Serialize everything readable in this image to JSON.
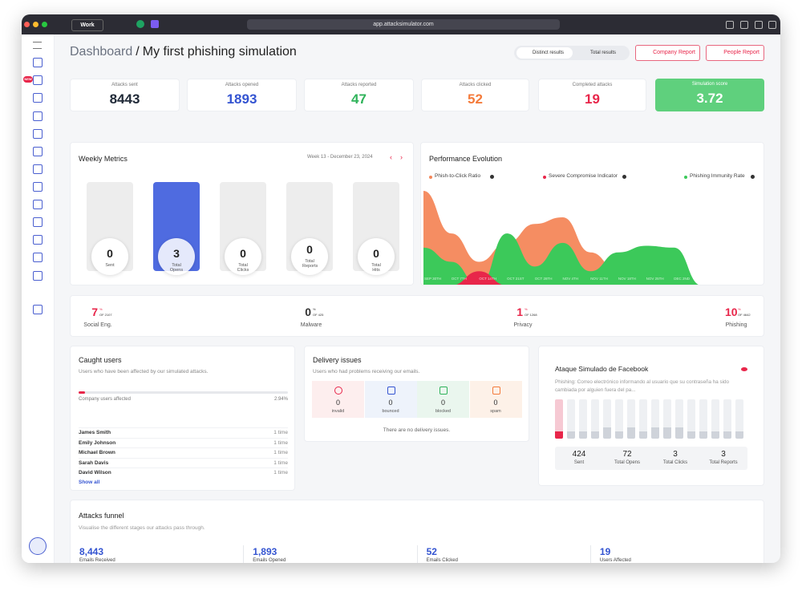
{
  "browser": {
    "profile": "Work",
    "url": "app.attacksimulator.com"
  },
  "sidebar": {
    "badge": "NEW"
  },
  "header": {
    "title": "Dashboard",
    "separator": "/",
    "subtitle": "My first phishing simulation",
    "toggle": [
      "Distinct results",
      "Total results"
    ],
    "buttons": [
      "Company Report",
      "People Report"
    ]
  },
  "stats": [
    {
      "label": "Attacks sent",
      "value": 8443
    },
    {
      "label": "Attacks opened",
      "value": 1893
    },
    {
      "label": "Attacks reported",
      "value": 47
    },
    {
      "label": "Attacks clicked",
      "value": 52
    },
    {
      "label": "Completed attacks",
      "value": 19
    },
    {
      "label": "Simulation score",
      "value": 3.72
    }
  ],
  "weekly_metrics": {
    "title": "Weekly Metrics",
    "date": "Week 13 - December 23, 2024",
    "items": [
      {
        "value": 0,
        "label": "Sent"
      },
      {
        "value": 3,
        "label": "Total Opens"
      },
      {
        "value": 0,
        "label": "Total Clicks"
      },
      {
        "value": 0,
        "label": "Total Reports"
      },
      {
        "value": 0,
        "label": "Total Hits"
      }
    ]
  },
  "performance": {
    "type": "area",
    "title": "Performance Evolution",
    "x": [
      "SEP 30TH",
      "OCT 7TH",
      "OCT 14TH",
      "OCT 21ST",
      "OCT 28TH",
      "NOV 4TH",
      "NOV 11TH",
      "NOV 18TH",
      "NOV 25TH",
      "DEC 2ND",
      "DEC 9TH"
    ],
    "ylim": [
      0,
      100
    ],
    "series": [
      {
        "name": "Phish-to-Click Ratio",
        "color": "#f4875a",
        "values": [
          100,
          55,
          25,
          45,
          65,
          72,
          35,
          15,
          30,
          20,
          0
        ]
      },
      {
        "name": "Severe Compromise Indicator",
        "color": "#e8264a",
        "values": [
          0,
          0,
          15,
          0,
          0,
          0,
          0,
          0,
          0,
          0,
          0
        ]
      },
      {
        "name": "Phishing Immunity Rate",
        "color": "#3cc95a",
        "values": [
          40,
          25,
          0,
          55,
          20,
          45,
          15,
          35,
          42,
          40,
          0
        ]
      }
    ]
  },
  "categories": [
    {
      "value": 7,
      "unit": "%",
      "of": "OF 2107",
      "label": "Social Eng."
    },
    {
      "value": 0,
      "unit": "%",
      "of": "OF 425",
      "label": "Malware"
    },
    {
      "value": 1,
      "unit": "%",
      "of": "OF 1268",
      "label": "Privacy"
    },
    {
      "value": 10,
      "unit": "%",
      "of": "OF 4642",
      "label": "Phishing"
    }
  ],
  "caught_users": {
    "title": "Caught users",
    "description": "Users who have been affected by our simulated attacks.",
    "progress_label": "Company users affected",
    "percent": {
      "value": 2.94,
      "label": "2.94%"
    },
    "users": [
      {
        "name": "James Smith",
        "count": "1 time"
      },
      {
        "name": "Emily Johnson",
        "count": "1 time"
      },
      {
        "name": "Michael Brown",
        "count": "1 time"
      },
      {
        "name": "Sarah Davis",
        "count": "1 time"
      },
      {
        "name": "David Wilson",
        "count": "1 time"
      }
    ],
    "link": "Show all"
  },
  "delivery": {
    "title": "Delivery issues",
    "description": "Users who had problems receiving our emails.",
    "items": [
      {
        "value": 0,
        "label": "invalid"
      },
      {
        "value": 0,
        "label": "bounced"
      },
      {
        "value": 0,
        "label": "blocked"
      },
      {
        "value": 0,
        "label": "spam"
      }
    ],
    "note": "There are no delivery issues."
  },
  "facebook": {
    "title": "Ataque Simulado de Facebook",
    "description": "Phishing: Correo electrónico informando al usuario que su contraseña ha sido cambiada por alguien fuera del pa...",
    "stats": [
      {
        "value": 424,
        "label": "Sent"
      },
      {
        "value": 72,
        "label": "Total Opens"
      },
      {
        "value": 3,
        "label": "Total Clicks"
      },
      {
        "value": 3,
        "label": "Total Reports"
      }
    ]
  },
  "funnel": {
    "title": "Attacks funnel",
    "description": "Visualise the different stages our attacks pass through.",
    "items": [
      {
        "value": "8,443",
        "label": "Emails Received"
      },
      {
        "value": "1,893",
        "label": "Emails Opened"
      },
      {
        "value": "52",
        "label": "Emails Clicked"
      },
      {
        "value": "19",
        "label": "Users Affected"
      }
    ]
  }
}
